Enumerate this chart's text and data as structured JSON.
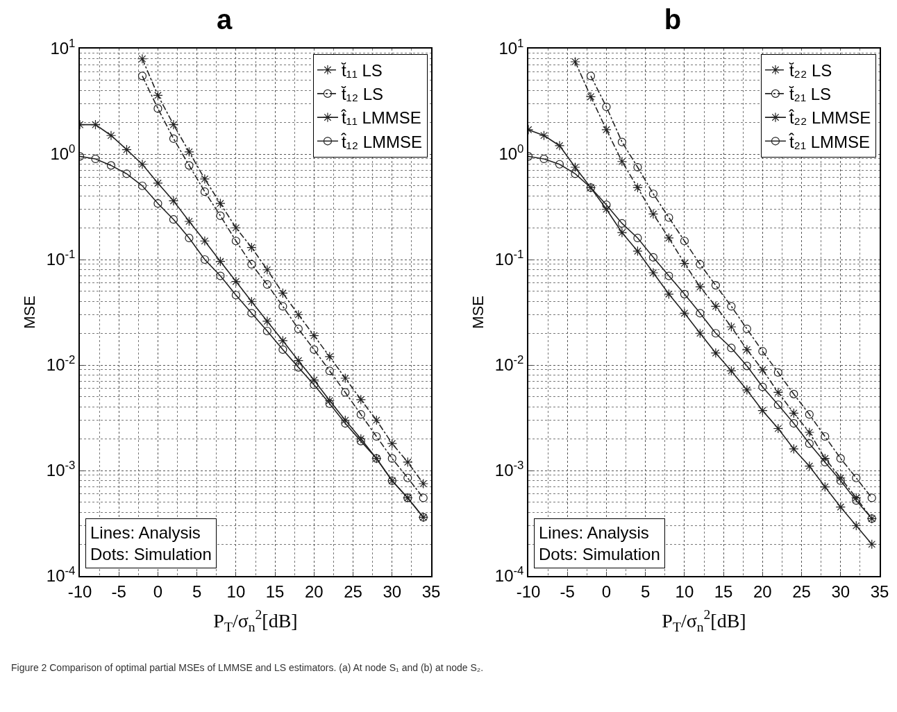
{
  "chart_data": [
    {
      "type": "line",
      "title": "a",
      "xlabel": "P$_{T}$/σ$_{n}$$^{2}$[dB]",
      "ylabel": "MSE",
      "log": "y",
      "grid": true,
      "legend": "top right",
      "xlim": [
        -10,
        35
      ],
      "xticks": [
        -10,
        -5,
        0,
        5,
        10,
        15,
        20,
        25,
        30,
        35
      ],
      "ylim": [
        0.0001,
        10
      ],
      "yticks": [
        {
          "value": 0.0001,
          "label": "10$^{-4}$"
        },
        {
          "value": 0.001,
          "label": "10$^{-3}$"
        },
        {
          "value": 0.01,
          "label": "10$^{-2}$"
        },
        {
          "value": 0.1,
          "label": "10$^{-1}$"
        },
        {
          "value": 1,
          "label": "10$^{0}$"
        },
        {
          "value": 10,
          "label": "10$^{1}$"
        }
      ],
      "annotations": [
        "Lines: Analysis\nDots: Simulation",
        "Figure 2 Comparison of optimal partial MSEs of LMMSE and LS estimators. (a) At node S₁ and (b) at node S₂."
      ],
      "series": [
        {
          "name": "t̆₁₁ LS",
          "color": "#222222",
          "marker": "cross",
          "line_style": "dashed",
          "x": [
            -2,
            0,
            2,
            4,
            6,
            8,
            10,
            12,
            14,
            16,
            18,
            20,
            22,
            24,
            26,
            28,
            30,
            32,
            34
          ],
          "values": [
            8,
            3.6,
            1.9,
            1.05,
            0.58,
            0.34,
            0.2,
            0.13,
            0.08,
            0.048,
            0.03,
            0.019,
            0.012,
            0.0075,
            0.0047,
            0.003,
            0.0018,
            0.0012,
            0.00075
          ]
        },
        {
          "name": "t̆₁₂ LS",
          "color": "#222222",
          "marker": "circle",
          "line_style": "dashed",
          "x": [
            -2,
            0,
            2,
            4,
            6,
            8,
            10,
            12,
            14,
            16,
            18,
            20,
            22,
            24,
            26,
            28,
            30,
            32,
            34
          ],
          "values": [
            5.5,
            2.7,
            1.4,
            0.78,
            0.44,
            0.26,
            0.15,
            0.09,
            0.058,
            0.036,
            0.022,
            0.014,
            0.0088,
            0.0055,
            0.0034,
            0.0021,
            0.0013,
            0.00085,
            0.00055
          ]
        },
        {
          "name": "t̂₁₁ LMMSE",
          "color": "#222222",
          "marker": "cross",
          "line_style": "solid",
          "x": [
            -10,
            -8,
            -6,
            -4,
            -2,
            0,
            2,
            4,
            6,
            8,
            10,
            12,
            14,
            16,
            18,
            20,
            22,
            24,
            26,
            28,
            30,
            32,
            34
          ],
          "values": [
            1.9,
            1.9,
            1.5,
            1.1,
            0.8,
            0.53,
            0.36,
            0.23,
            0.15,
            0.096,
            0.062,
            0.04,
            0.026,
            0.017,
            0.011,
            0.0072,
            0.0046,
            0.003,
            0.002,
            0.0013,
            0.0008,
            0.00055,
            0.00036
          ]
        },
        {
          "name": "t̂₁₂ LMMSE",
          "color": "#222222",
          "marker": "circle",
          "line_style": "solid",
          "x": [
            -10,
            -8,
            -6,
            -4,
            -2,
            0,
            2,
            4,
            6,
            8,
            10,
            12,
            14,
            16,
            18,
            20,
            22,
            24,
            26,
            28,
            30,
            32,
            34
          ],
          "values": [
            0.95,
            0.9,
            0.78,
            0.65,
            0.5,
            0.34,
            0.24,
            0.16,
            0.1,
            0.07,
            0.046,
            0.031,
            0.021,
            0.014,
            0.0095,
            0.0065,
            0.0043,
            0.0028,
            0.0019,
            0.0013,
            0.0008,
            0.00055,
            0.00036
          ]
        }
      ]
    },
    {
      "type": "line",
      "title": "b",
      "xlabel": "P$_{T}$/σ$_{n}$$^{2}$[dB]",
      "ylabel": "MSE",
      "log": "y",
      "grid": true,
      "legend": "top right",
      "xlim": [
        -10,
        35
      ],
      "xticks": [
        -10,
        -5,
        0,
        5,
        10,
        15,
        20,
        25,
        30,
        35
      ],
      "ylim": [
        0.0001,
        10
      ],
      "yticks": [
        {
          "value": 0.0001,
          "label": "10$^{-4}$"
        },
        {
          "value": 0.001,
          "label": "10$^{-3}$"
        },
        {
          "value": 0.01,
          "label": "10$^{-2}$"
        },
        {
          "value": 0.1,
          "label": "10$^{-1}$"
        },
        {
          "value": 1,
          "label": "10$^{0}$"
        },
        {
          "value": 10,
          "label": "10$^{1}$"
        }
      ],
      "annotations": [
        "Lines: Analysis\nDots: Simulation"
      ],
      "series": [
        {
          "name": "t̆₂₂ LS",
          "color": "#222222",
          "marker": "cross",
          "line_style": "dashed",
          "x": [
            -4,
            -2,
            0,
            2,
            4,
            6,
            8,
            10,
            12,
            14,
            16,
            18,
            20,
            22,
            24,
            26,
            28,
            30,
            32,
            34
          ],
          "values": [
            7.5,
            3.5,
            1.7,
            0.85,
            0.48,
            0.27,
            0.16,
            0.092,
            0.055,
            0.036,
            0.023,
            0.014,
            0.009,
            0.0055,
            0.0035,
            0.0023,
            0.0013,
            0.00085,
            0.00055,
            0.00035
          ]
        },
        {
          "name": "t̆₂₁ LS",
          "color": "#222222",
          "marker": "circle",
          "line_style": "dashed",
          "x": [
            -2,
            0,
            2,
            4,
            6,
            8,
            10,
            12,
            14,
            16,
            18,
            20,
            22,
            24,
            26,
            28,
            30,
            32,
            34
          ],
          "values": [
            5.5,
            2.8,
            1.3,
            0.75,
            0.42,
            0.25,
            0.15,
            0.09,
            0.057,
            0.036,
            0.022,
            0.0135,
            0.0085,
            0.0053,
            0.0034,
            0.0021,
            0.0013,
            0.00085,
            0.00055
          ]
        },
        {
          "name": "t̂₂₂ LMMSE",
          "color": "#222222",
          "marker": "cross",
          "line_style": "solid",
          "x": [
            -10,
            -8,
            -6,
            -4,
            -2,
            0,
            2,
            4,
            6,
            8,
            10,
            12,
            14,
            16,
            18,
            20,
            22,
            24,
            26,
            28,
            30,
            32,
            34
          ],
          "values": [
            1.7,
            1.5,
            1.2,
            0.75,
            0.48,
            0.3,
            0.18,
            0.12,
            0.075,
            0.047,
            0.031,
            0.02,
            0.013,
            0.0088,
            0.0058,
            0.0037,
            0.0025,
            0.0016,
            0.0011,
            0.0007,
            0.00045,
            0.0003,
            0.0002
          ]
        },
        {
          "name": "t̂₂₁ LMMSE",
          "color": "#222222",
          "marker": "circle",
          "line_style": "solid",
          "x": [
            -10,
            -8,
            -6,
            -4,
            -2,
            0,
            2,
            4,
            6,
            8,
            10,
            12,
            14,
            16,
            18,
            20,
            22,
            24,
            26,
            28,
            30,
            32,
            34
          ],
          "values": [
            0.95,
            0.9,
            0.8,
            0.65,
            0.48,
            0.33,
            0.22,
            0.16,
            0.105,
            0.07,
            0.047,
            0.031,
            0.02,
            0.0145,
            0.0098,
            0.0062,
            0.0042,
            0.0028,
            0.0018,
            0.0012,
            0.0008,
            0.00052,
            0.00035
          ]
        }
      ]
    }
  ]
}
